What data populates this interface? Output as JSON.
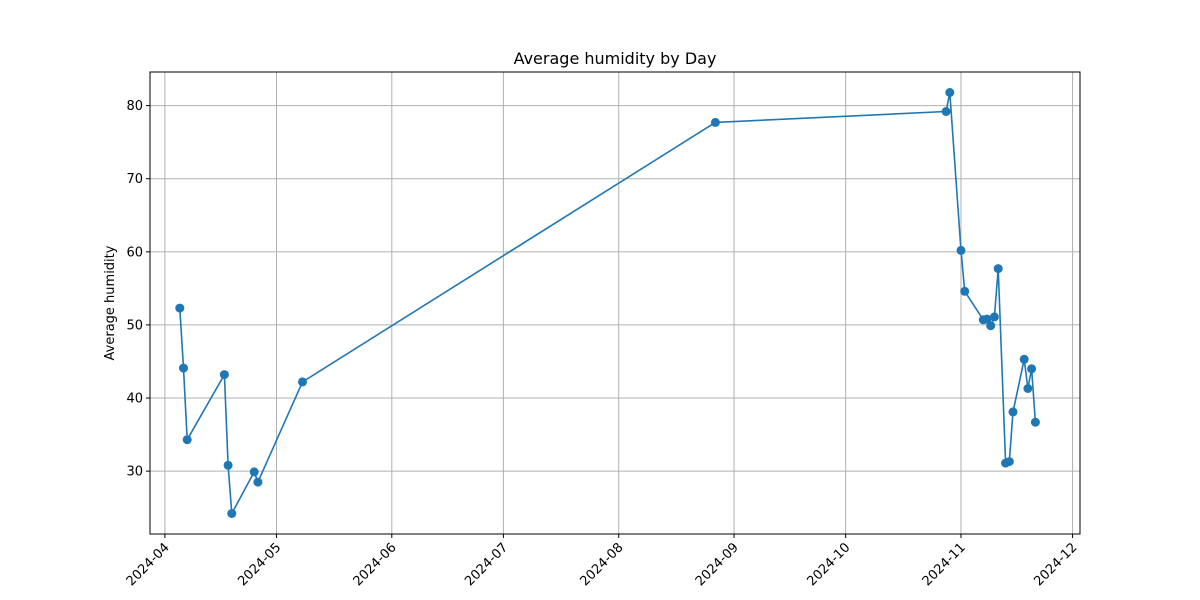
{
  "chart_data": {
    "type": "line",
    "title": "Average humidity by Day",
    "xlabel": "",
    "ylabel": "Average humidity",
    "x_tick_labels": [
      "2024-04",
      "2024-05",
      "2024-06",
      "2024-07",
      "2024-08",
      "2024-09",
      "2024-10",
      "2024-11",
      "2024-12"
    ],
    "x_ticks": [
      "2024-04-01",
      "2024-05-01",
      "2024-06-01",
      "2024-07-01",
      "2024-08-01",
      "2024-09-01",
      "2024-10-01",
      "2024-11-01",
      "2024-12-01"
    ],
    "xlim": [
      "2024-03-28",
      "2024-12-03"
    ],
    "y_ticks": [
      30,
      40,
      50,
      60,
      70,
      80
    ],
    "ylim": [
      21.4,
      84.6
    ],
    "grid": true,
    "color": "#1f77b4",
    "series": [
      {
        "x": [
          "2024-04-05",
          "2024-04-06",
          "2024-04-07",
          "2024-04-17",
          "2024-04-18",
          "2024-04-19",
          "2024-04-25",
          "2024-04-26",
          "2024-05-08",
          "2024-08-27",
          "2024-10-28",
          "2024-10-29",
          "2024-11-01",
          "2024-11-02",
          "2024-11-07",
          "2024-11-08",
          "2024-11-09",
          "2024-11-10",
          "2024-11-11",
          "2024-11-13",
          "2024-11-14",
          "2024-11-15",
          "2024-11-18",
          "2024-11-19",
          "2024-11-20",
          "2024-11-21"
        ],
        "values": [
          52.3,
          44.1,
          34.3,
          43.2,
          30.8,
          24.2,
          29.9,
          28.5,
          42.2,
          77.7,
          79.2,
          81.8,
          60.2,
          54.6,
          50.7,
          50.8,
          49.9,
          51.1,
          57.7,
          31.1,
          31.3,
          38.1,
          45.3,
          41.3,
          44.0,
          36.7
        ]
      }
    ]
  }
}
